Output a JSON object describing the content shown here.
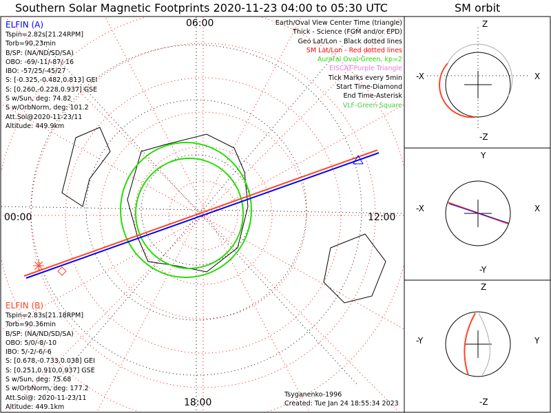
{
  "title": "Southern Solar Magnetic Footprints 2020-11-23 04:00 to 05:30 UTC",
  "sm_orbit_title": "SM orbit",
  "mlt_labels": {
    "top": "06:00",
    "left": "00:00",
    "right": "12:00",
    "bottom": "18:00"
  },
  "elfin_a": {
    "name": "ELFIN (A)",
    "lines": [
      "Tspin=2.82s[21.24RPM]",
      "Torb=90.23min",
      "B/SP: (NA/ND/SD/SA)",
      "OBO: -69/-11/-87/-16",
      "IBO: -57/25/-45/27",
      "S: [-0.325,-0.482,0.813] GEI",
      "S: [0.260,-0.228,0.937] GSE",
      "S w/Sun, deg: 74.82",
      "S w/OrbNorm, deg: 101.2",
      "Att.Sol@2020-11-23/11",
      "Altitude: 449.9km"
    ]
  },
  "elfin_b": {
    "name": "ELFIN (B)",
    "lines": [
      "Tspin=2.83s[21.18RPM]",
      "Torb=90.36min",
      "B/SP: (NA/ND/SD/SA)",
      "OBO: 5/0/-8/-10",
      "IBO: 5/-2/-6/-6",
      "S: [0.678,-0.733,0.038] GEI",
      "S: [0.251,0.910,0.937] GSE",
      "S w/Sun, deg: 75.68",
      "S w/OrbNorm, deg: 177.2",
      "Att.Sol@: 2020-11-23/11",
      "Altitude: 449.1km"
    ]
  },
  "legend": [
    {
      "text": "Earth/Oval View Center Time (triangle)",
      "color": "#000000"
    },
    {
      "text": "Thick - Science (FGM and/or EPD)",
      "color": "#000000"
    },
    {
      "text": "Geo Lat/Lon - Black dotted lines",
      "color": "#000000"
    },
    {
      "text": "SM Lat/Lon - Red dotted lines",
      "color": "#ff0000"
    },
    {
      "text": "Auroral Oval-Green, kp=2",
      "color": "#22dd00"
    },
    {
      "text": "EISCAT-Purple Triangle",
      "color": "#ee77ee"
    },
    {
      "text": "Tick Marks every 5min",
      "color": "#000000"
    },
    {
      "text": "Start Time-Diamond",
      "color": "#000000"
    },
    {
      "text": "End Time-Asterisk",
      "color": "#000000"
    },
    {
      "text": "VLF-Green Square",
      "color": "#44cc44"
    }
  ],
  "footer": {
    "model": "Tsyganenko-1996",
    "created": "Created: Tue Jan 24 18:55:34 2023"
  },
  "panels": [
    {
      "top": "Z",
      "bottom": "-Z",
      "left": "-X",
      "right": "X"
    },
    {
      "top": "Y",
      "bottom": "-Y",
      "left": "-X",
      "right": "X"
    },
    {
      "top": "Z",
      "bottom": "-Z",
      "left": "-Y",
      "right": "Y"
    }
  ],
  "colors": {
    "elfin_a": "#0000ff",
    "elfin_b": "#ff4422",
    "oval": "#22dd00",
    "sm_grid": "#ff0000"
  }
}
